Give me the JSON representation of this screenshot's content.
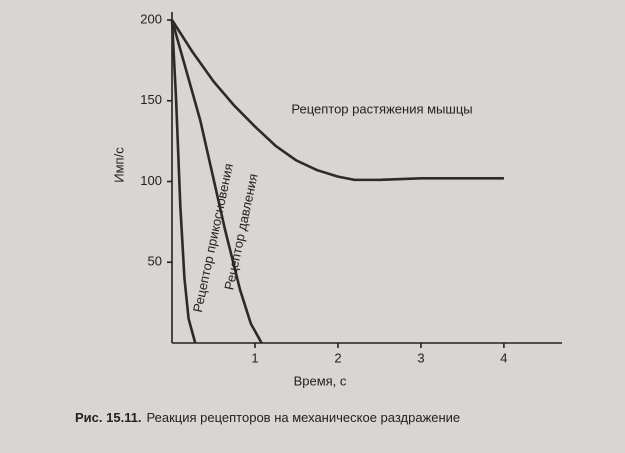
{
  "chart_data": {
    "type": "line",
    "xlabel": "Время, с",
    "ylabel": "Имп/с",
    "xlim": [
      0,
      4.7
    ],
    "xticks": [
      1,
      2,
      3,
      4
    ],
    "ylim": [
      0,
      200
    ],
    "yticks": [
      50,
      100,
      150,
      200
    ],
    "grid": false,
    "series": [
      {
        "name": "Рецептор растяжения мышцы",
        "color": "#2b2b2b",
        "x": [
          0,
          0.25,
          0.5,
          0.75,
          1,
          1.25,
          1.5,
          1.75,
          2,
          2.2,
          2.5,
          3,
          3.5,
          4
        ],
        "values": [
          200,
          180,
          162,
          147,
          134,
          122,
          113,
          107,
          103,
          101,
          101,
          102,
          102,
          102
        ]
      },
      {
        "name": "Рецептор прикосновения",
        "color": "#2b2b2b",
        "x": [
          0,
          0.05,
          0.1,
          0.15,
          0.2,
          0.28
        ],
        "values": [
          200,
          150,
          85,
          40,
          15,
          0
        ]
      },
      {
        "name": "Рецептор давления",
        "color": "#2b2b2b",
        "x": [
          0,
          0.34,
          0.64,
          0.82,
          0.95,
          1.08
        ],
        "values": [
          200,
          138,
          70,
          33,
          12,
          0
        ]
      }
    ]
  },
  "figure_caption": {
    "number": "Рис. 15.11.",
    "text": "Реакция рецепторов на механическое раздражение"
  }
}
